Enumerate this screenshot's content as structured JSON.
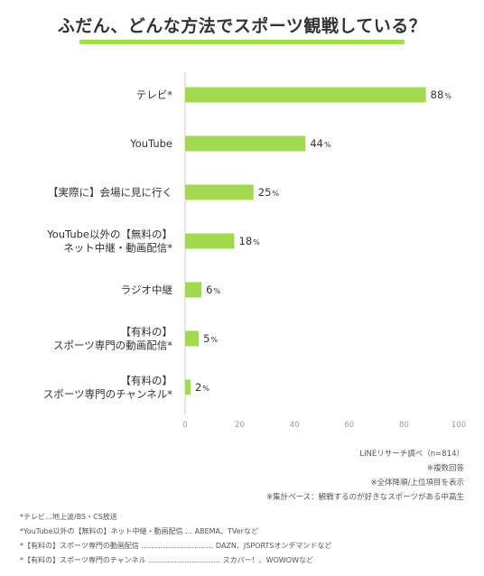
{
  "title": "ふだん、どんな方法でスポーツ観戦している？",
  "chart_data": {
    "type": "bar",
    "orientation": "horizontal",
    "categories": [
      [
        "テレビ*"
      ],
      [
        "YouTube"
      ],
      [
        "【実際に】会場に見に行く"
      ],
      [
        "YouTube以外の【無料の】",
        "ネット中継・動画配信*"
      ],
      [
        "ラジオ中継"
      ],
      [
        "【有料の】",
        "スポーツ専門の動画配信*"
      ],
      [
        "【有料の】",
        "スポーツ専門のチャンネル*"
      ]
    ],
    "values": [
      88,
      44,
      25,
      18,
      6,
      5,
      2
    ],
    "unit": "%",
    "xlim": [
      0,
      100
    ],
    "xticks": [
      "0",
      "20",
      "40",
      "60",
      "80",
      "100"
    ],
    "bar_color": "#a3d94e",
    "grid": false
  },
  "notes": [
    "LINEリサーチ調べ（n=814）",
    "※複数回答",
    "※全体降順/上位項目を表示",
    "※集計ベース：観戦するのが好きなスポーツがある中高生"
  ],
  "footnotes": [
    "*テレビ…地上波/BS・CS放送",
    "*YouTube以外の【無料の】ネット中継・動画配信 … ABEMA、TVerなど",
    "*【有料の】スポーツ専門の動画配信 ………………………… DAZN、JSPORTSオンデマンドなど",
    "*【有料の】スポーツ専門のチャンネル ………………………… スカパー！、WOWOWなど"
  ]
}
